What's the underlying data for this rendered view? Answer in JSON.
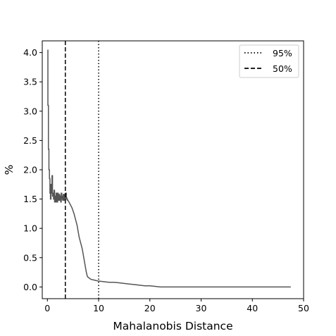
{
  "chart_data": {
    "type": "line",
    "title": "",
    "xlabel": "Mahalanobis Distance",
    "ylabel": "%",
    "xlim": [
      -1,
      50
    ],
    "ylim": [
      -0.2,
      4.2
    ],
    "xticks": [
      0,
      10,
      20,
      30,
      40,
      50
    ],
    "xtick_labels": [
      "0",
      "10",
      "20",
      "30",
      "40",
      "50"
    ],
    "yticks": [
      0.0,
      0.5,
      1.0,
      1.5,
      2.0,
      2.5,
      3.0,
      3.5,
      4.0
    ],
    "ytick_labels": [
      "0.0",
      "0.5",
      "1.0",
      "1.5",
      "2.0",
      "2.5",
      "3.0",
      "3.5",
      "4.0"
    ],
    "grid": false,
    "legend_position": "top-right",
    "series": [
      {
        "color": "#555555",
        "x": [
          0.1,
          0.1,
          0.2,
          0.2,
          0.3,
          0.3,
          0.4,
          0.4,
          0.5,
          0.5,
          0.6,
          0.6,
          0.7,
          0.7,
          0.8,
          0.8,
          0.9,
          0.9,
          1.0,
          1.0,
          1.1,
          1.1,
          1.2,
          1.2,
          1.3,
          1.3,
          1.4,
          1.4,
          1.5,
          1.5,
          1.6,
          1.6,
          1.7,
          1.7,
          1.8,
          1.8,
          1.9,
          1.9,
          2.0,
          2.0,
          2.1,
          2.1,
          2.2,
          2.2,
          2.3,
          2.3,
          2.4,
          2.4,
          2.5,
          2.5,
          2.6,
          2.6,
          2.7,
          2.7,
          2.8,
          2.8,
          2.9,
          2.9,
          3.0,
          3.0,
          3.1,
          3.1,
          3.2,
          3.2,
          3.3,
          3.3,
          3.4,
          3.4,
          3.5,
          3.5,
          3.6,
          3.6,
          3.7,
          3.7,
          3.8,
          3.8,
          3.9,
          3.9,
          4.0,
          4.2,
          4.5,
          4.8,
          5.0,
          5.2,
          5.5,
          5.8,
          6.0,
          6.2,
          6.5,
          6.8,
          7.0,
          7.2,
          7.4,
          7.6,
          7.8,
          8.0,
          8.2,
          8.5,
          9.0,
          9.5,
          10.0,
          11.0,
          12.0,
          13.0,
          14.0,
          15.0,
          16.0,
          17.0,
          18.0,
          19.0,
          20.0,
          21.0,
          22.0,
          25.0,
          30.0,
          35.0,
          40.0,
          45.0,
          47.5
        ],
        "y": [
          4.05,
          3.1,
          3.1,
          2.35,
          2.35,
          2.0,
          2.0,
          1.85,
          1.85,
          1.6,
          1.6,
          1.5,
          1.5,
          1.75,
          1.75,
          1.6,
          1.6,
          1.9,
          1.9,
          1.55,
          1.55,
          1.6,
          1.6,
          1.5,
          1.5,
          1.65,
          1.65,
          1.45,
          1.45,
          1.55,
          1.55,
          1.45,
          1.45,
          1.6,
          1.6,
          1.5,
          1.5,
          1.45,
          1.45,
          1.6,
          1.6,
          1.5,
          1.5,
          1.48,
          1.48,
          1.58,
          1.58,
          1.48,
          1.48,
          1.55,
          1.55,
          1.45,
          1.45,
          1.6,
          1.6,
          1.5,
          1.5,
          1.55,
          1.55,
          1.48,
          1.48,
          1.58,
          1.58,
          1.5,
          1.5,
          1.48,
          1.48,
          1.58,
          1.58,
          1.5,
          1.5,
          1.6,
          1.6,
          1.52,
          1.52,
          1.5,
          1.5,
          1.48,
          1.48,
          1.45,
          1.4,
          1.35,
          1.3,
          1.25,
          1.15,
          1.05,
          0.95,
          0.85,
          0.75,
          0.65,
          0.55,
          0.45,
          0.35,
          0.25,
          0.18,
          0.16,
          0.15,
          0.13,
          0.12,
          0.11,
          0.1,
          0.09,
          0.08,
          0.08,
          0.07,
          0.06,
          0.05,
          0.04,
          0.03,
          0.02,
          0.02,
          0.01,
          0.0,
          0.0,
          0.0,
          0.0,
          0.0,
          0.0,
          0.0
        ]
      }
    ],
    "vlines": [
      {
        "x": 10.0,
        "style": "dotted",
        "label": "95%"
      },
      {
        "x": 3.5,
        "style": "dashed",
        "label": "50%"
      }
    ]
  }
}
